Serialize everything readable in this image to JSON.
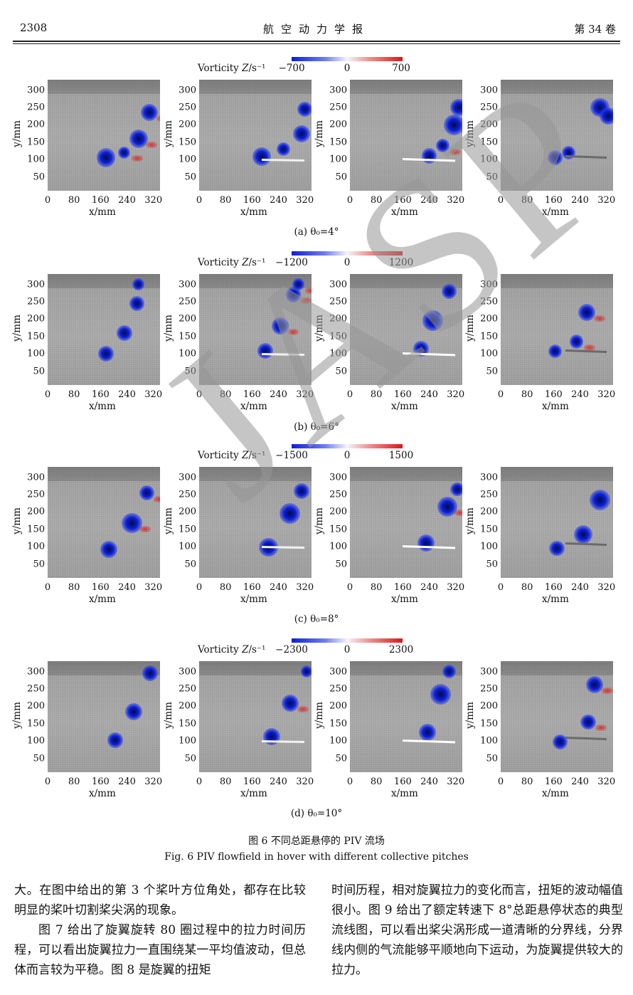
{
  "header": {
    "page_number": "2308",
    "journal": "航空动力学报",
    "volume": "第 34 卷"
  },
  "figure": {
    "colorbar_label": "Vorticity",
    "colorbar_var": "Z",
    "colorbar_unit": "/s⁻¹",
    "x_axis_title": "x/mm",
    "y_axis_title": "y/mm",
    "x_ticks": [
      "0",
      "80",
      "160",
      "240",
      "320"
    ],
    "y_ticks": [
      "300",
      "250",
      "200",
      "150",
      "100",
      "50"
    ],
    "rows": [
      {
        "caption": "(a) θ₀=4°",
        "cb_min": "−700",
        "cb_zero": "0",
        "cb_max": "700"
      },
      {
        "caption": "(b) θ₀=6°",
        "cb_min": "−1200",
        "cb_zero": "0",
        "cb_max": "1200"
      },
      {
        "caption": "(c) θ₀=8°",
        "cb_min": "−1500",
        "cb_zero": "0",
        "cb_max": "1500"
      },
      {
        "caption": "(d) θ₀=10°",
        "cb_min": "−2300",
        "cb_zero": "0",
        "cb_max": "2300"
      }
    ],
    "caption_cn": "图 6   不同总距悬停的 PIV 流场",
    "caption_en": "Fig. 6   PIV flowfield in hover with different collective pitches",
    "watermark": "JASP"
  },
  "body": {
    "left": [
      "大。在图中给出的第 3 个桨叶方位角处，都存在比较明显的桨叶切割桨尖涡的现象。",
      "图 7 给出了旋翼旋转 80 圈过程中的拉力时间历程，可以看出旋翼拉力一直围绕某一平均值波动，但总体而言较为平稳。图 8 是旋翼的扭矩"
    ],
    "right": [
      "时间历程，相对旋翼拉力的变化而言，扭矩的波动幅值很小。图 9 给出了额定转速下 8°总距悬停状态的典型流线图，可以看出桨尖涡形成一道清晰的分界线，分界线内侧的气流能够平顺地向下运动，为旋翼提供较大的拉力。"
    ]
  }
}
